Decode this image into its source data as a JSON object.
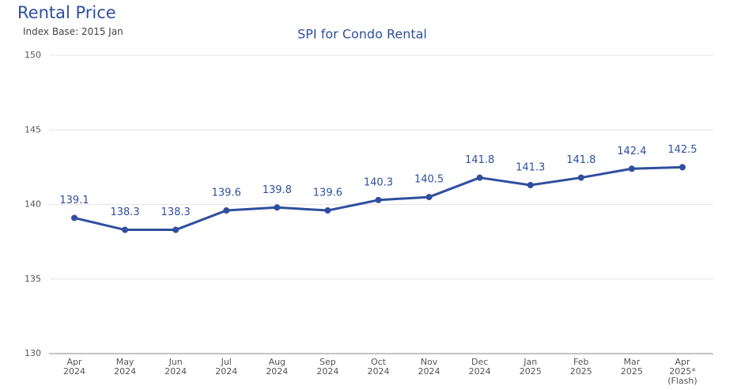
{
  "header": {
    "title": "Rental Price",
    "subtitle": "Index Base: 2015 Jan"
  },
  "chart_data": {
    "type": "line",
    "title": "SPI for Condo Rental",
    "categories": [
      "Apr\n2024",
      "May\n2024",
      "Jun\n2024",
      "Jul\n2024",
      "Aug\n2024",
      "Sep\n2024",
      "Oct\n2024",
      "Nov\n2024",
      "Dec\n2024",
      "Jan\n2025",
      "Feb\n2025",
      "Mar\n2025",
      "Apr\n2025*\n(Flash)"
    ],
    "series": [
      {
        "name": "SPI for Condo Rental",
        "color": "#2f4f9e",
        "values": [
          139.1,
          138.3,
          138.3,
          139.6,
          139.8,
          139.6,
          140.3,
          140.5,
          141.8,
          141.3,
          141.8,
          142.4,
          142.5
        ]
      }
    ],
    "ylim": [
      130,
      150
    ],
    "yticks": [
      130,
      135,
      140,
      145,
      150
    ],
    "grid": true
  }
}
